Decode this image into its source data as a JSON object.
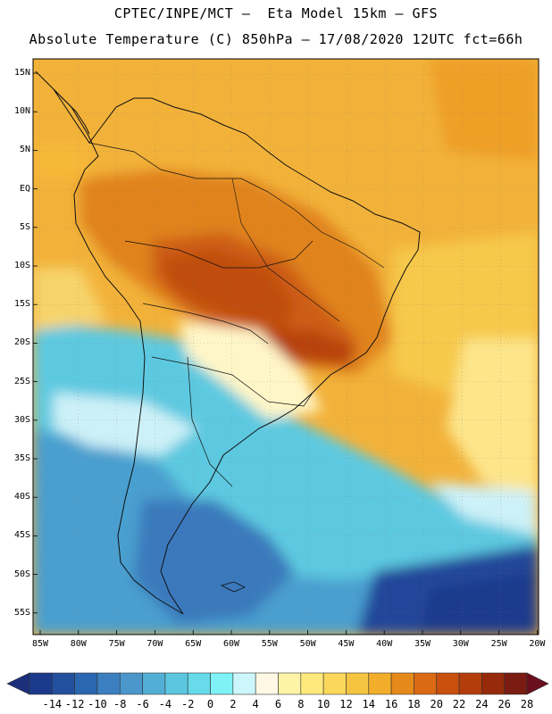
{
  "header": {
    "line1": "CPTEC/INPE/MCT –  Eta Model 15km – GFS",
    "line2": "Absolute Temperature (C) 850hPa – 17/08/2020 12UTC fct=66h"
  },
  "map": {
    "lat_ticks": [
      "15N",
      "10N",
      "5N",
      "EQ",
      "5S",
      "10S",
      "15S",
      "20S",
      "25S",
      "30S",
      "35S",
      "40S",
      "45S",
      "50S",
      "55S"
    ],
    "lon_ticks": [
      "85W",
      "80W",
      "75W",
      "70W",
      "65W",
      "60W",
      "55W",
      "50W",
      "45W",
      "40W",
      "35W",
      "30W",
      "25W",
      "20W"
    ]
  },
  "colorbar": {
    "labels": [
      "-14",
      "-12",
      "-10",
      "-8",
      "-6",
      "-4",
      "-2",
      "0",
      "2",
      "4",
      "6",
      "8",
      "10",
      "12",
      "14",
      "16",
      "18",
      "20",
      "22",
      "24",
      "26",
      "28"
    ],
    "colors": [
      "#1b3a8c",
      "#23509e",
      "#2b67b0",
      "#3b7fc0",
      "#4b97cc",
      "#53aed6",
      "#5cc6e0",
      "#67dbe9",
      "#7ef2f5",
      "#cdf6fb",
      "#fff8e5",
      "#fff3a6",
      "#fee97c",
      "#fbd85a",
      "#f5c542",
      "#f2ae2a",
      "#e58a1a",
      "#da6a13",
      "#c9500f",
      "#b33e0c",
      "#962a0a",
      "#7a1c12"
    ],
    "left_arrow_color": "#1b2f7a",
    "right_arrow_color": "#6a0f1e"
  }
}
